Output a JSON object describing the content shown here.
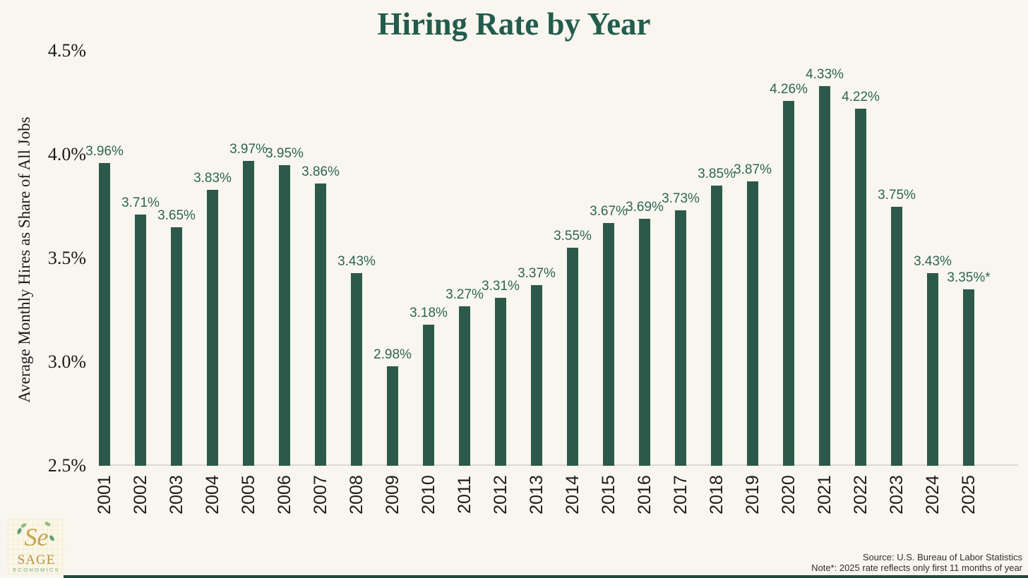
{
  "page": {
    "background": "#F8F6EF"
  },
  "chart_data": {
    "type": "bar",
    "title": "Hiring Rate by Year",
    "xlabel": "",
    "ylabel": "Average Monthly Hires as Share of All Jobs",
    "categories": [
      "2001",
      "2002",
      "2003",
      "2004",
      "2005",
      "2006",
      "2007",
      "2008",
      "2009",
      "2010",
      "2011",
      "2012",
      "2013",
      "2014",
      "2015",
      "2016",
      "2017",
      "2018",
      "2019",
      "2020",
      "2021",
      "2022",
      "2023",
      "2024",
      "2025"
    ],
    "values": [
      3.96,
      3.71,
      3.65,
      3.83,
      3.97,
      3.95,
      3.86,
      3.43,
      2.98,
      3.18,
      3.27,
      3.31,
      3.37,
      3.55,
      3.67,
      3.69,
      3.73,
      3.85,
      3.87,
      4.26,
      4.33,
      4.22,
      3.75,
      3.43,
      3.35
    ],
    "value_labels": [
      "3.96%",
      "3.71%",
      "3.65%",
      "3.83%",
      "3.97%",
      "3.95%",
      "3.86%",
      "3.43%",
      "2.98%",
      "3.18%",
      "3.27%",
      "3.31%",
      "3.37%",
      "3.55%",
      "3.67%",
      "3.69%",
      "3.73%",
      "3.85%",
      "3.87%",
      "4.26%",
      "4.33%",
      "4.22%",
      "3.75%",
      "3.43%",
      "3.35%*"
    ],
    "y_ticks": [
      {
        "value": 4.5,
        "label": "4.5%"
      },
      {
        "value": 4.0,
        "label": "4.0%"
      },
      {
        "value": 3.5,
        "label": "3.5%"
      },
      {
        "value": 3.0,
        "label": "3.0%"
      },
      {
        "value": 2.5,
        "label": "2.5%"
      }
    ],
    "ylim": [
      2.5,
      4.5
    ],
    "grid": false,
    "legend": "none",
    "bar_color": "#2D594B",
    "label_color": "#2E6553",
    "title_color": "#235C4C",
    "axis_line_color": "#DBD9D0",
    "accent_strip_color": "#1F4A3B"
  },
  "logo": {
    "monogram": "Se",
    "name": "SAGE",
    "subtitle": "ECONOMICS"
  },
  "footer": {
    "source": "Source: U.S. Bureau of Labor Statistics",
    "note": "Note*: 2025 rate reflects only first 11 months of year"
  }
}
